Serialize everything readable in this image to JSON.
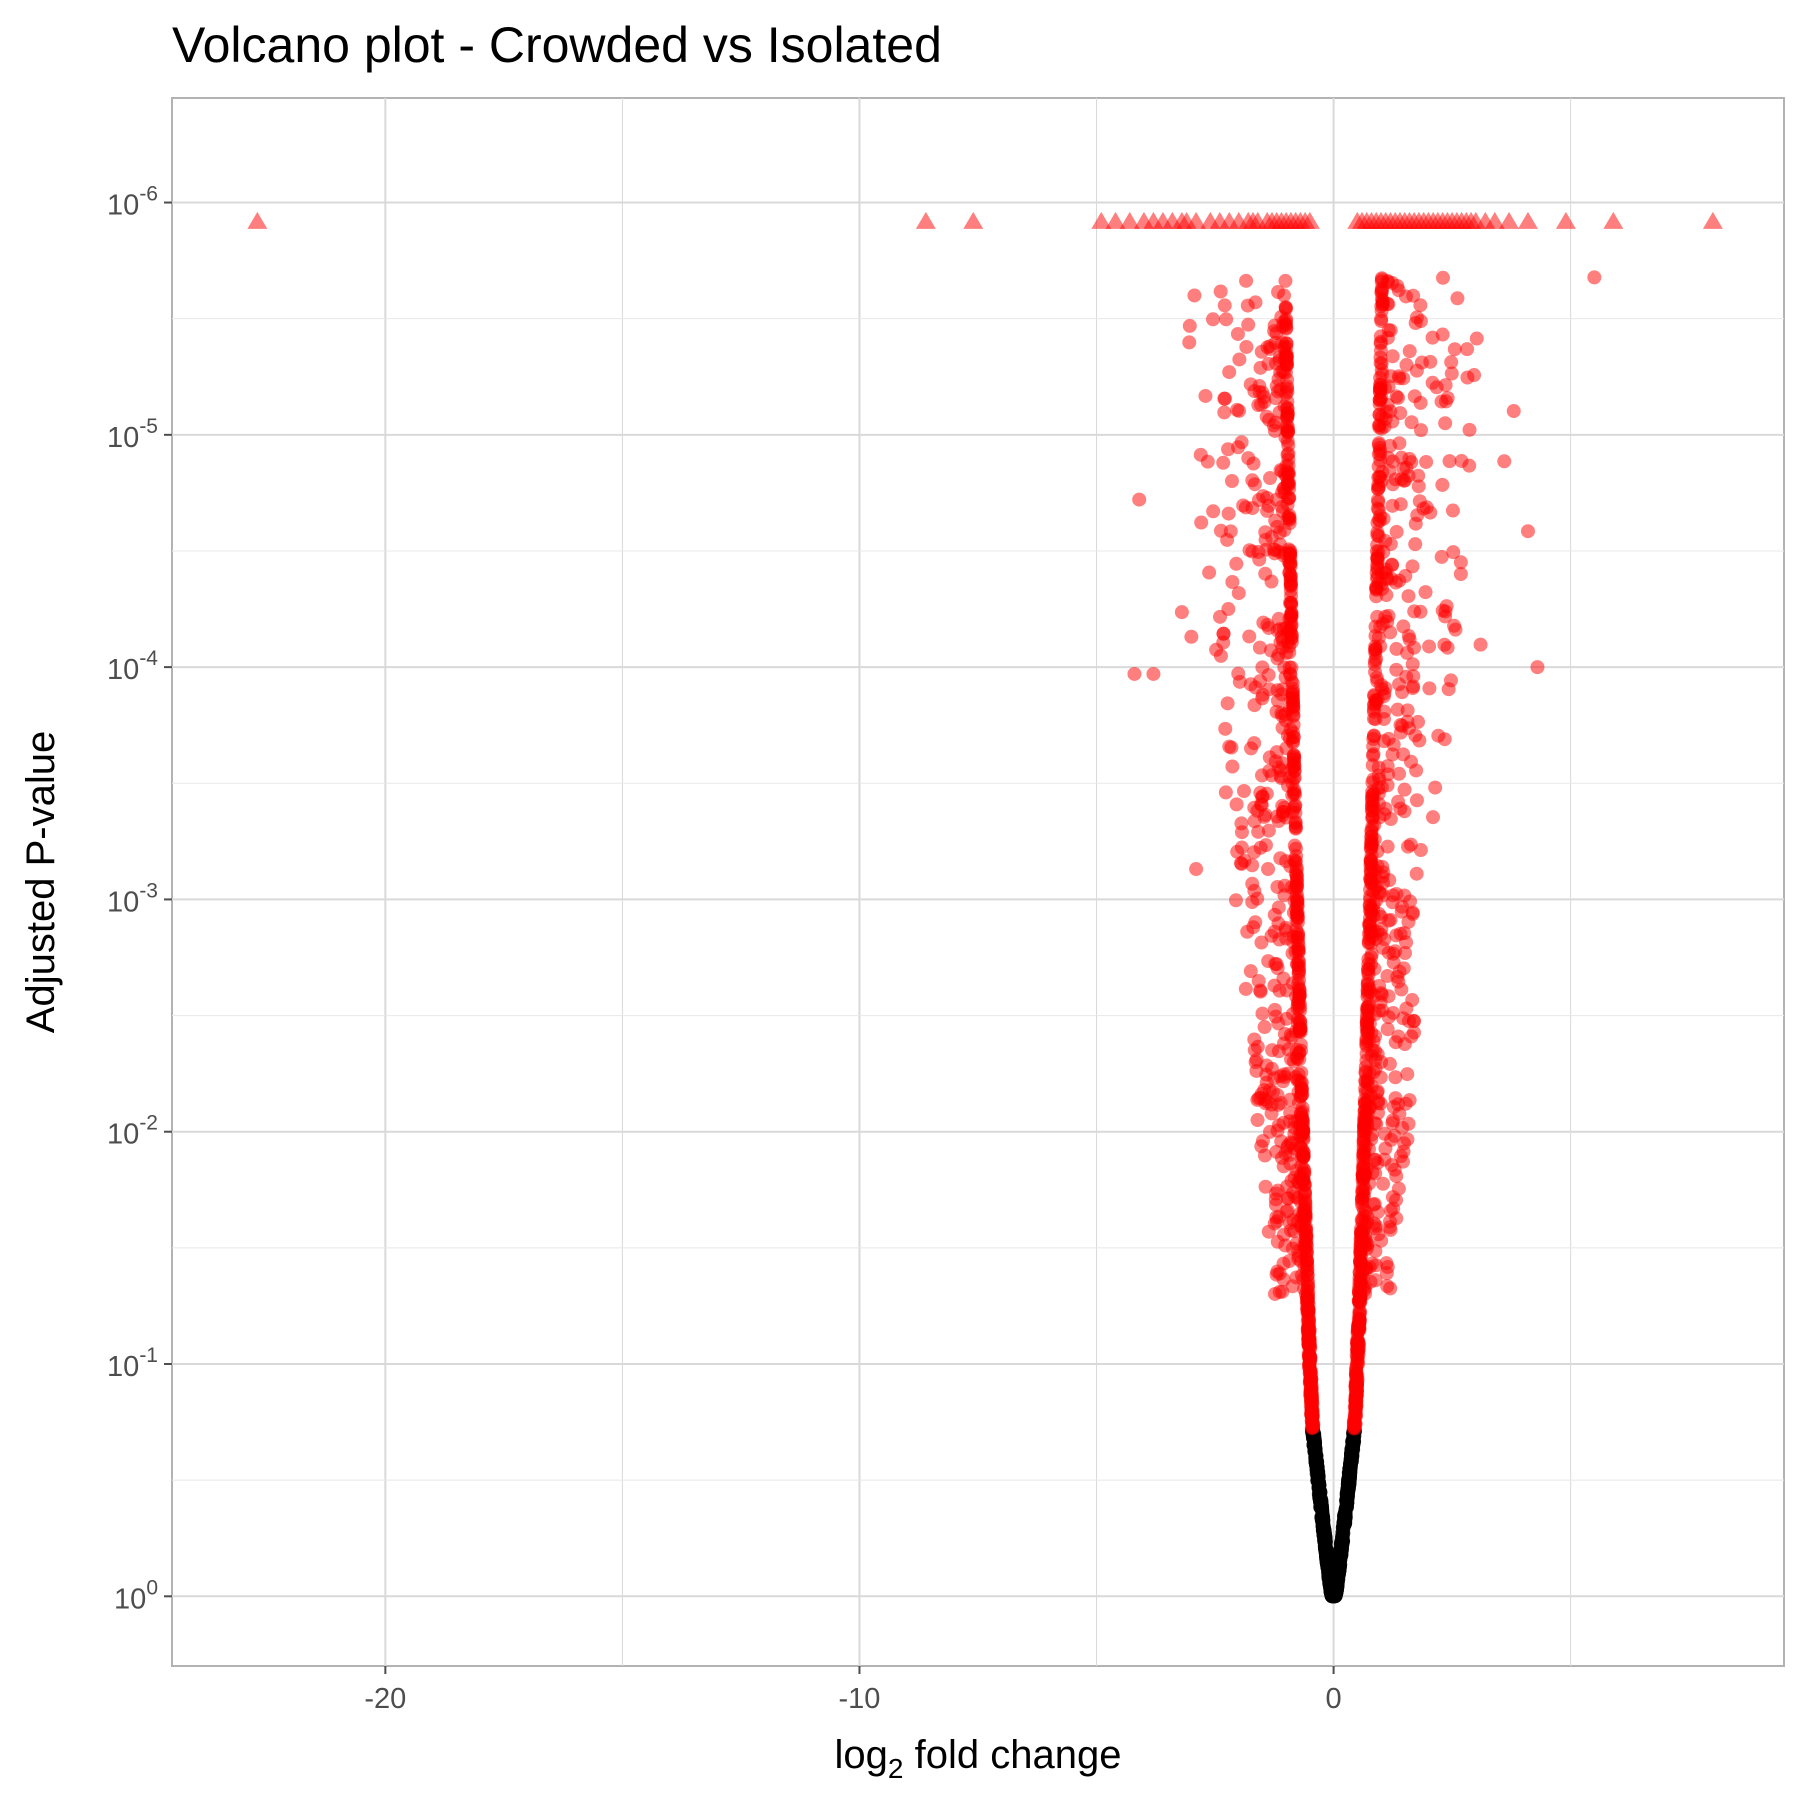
{
  "chart_data": {
    "type": "scatter",
    "title": "Volcano plot - Crowded vs Isolated",
    "xlabel": {
      "prefix": "log",
      "subscript": "2",
      "suffix": " fold change"
    },
    "ylabel": "Adjusted P-value",
    "x_scale": "linear",
    "y_scale": "log (reversed)",
    "xlim": [
      -24.5,
      9.5
    ],
    "ylim_exponent": [
      0.3,
      -6.45
    ],
    "x_ticks": [
      {
        "value": -20,
        "label": "-20"
      },
      {
        "value": -10,
        "label": "-10"
      },
      {
        "value": 0,
        "label": "0"
      }
    ],
    "y_ticks": [
      {
        "value": 1,
        "base": "10",
        "exponent": "0"
      },
      {
        "value": 0.1,
        "base": "10",
        "exponent": "-1"
      },
      {
        "value": 0.01,
        "base": "10",
        "exponent": "-2"
      },
      {
        "value": 0.001,
        "base": "10",
        "exponent": "-3"
      },
      {
        "value": 0.0001,
        "base": "10",
        "exponent": "-4"
      },
      {
        "value": 1e-05,
        "base": "10",
        "exponent": "-5"
      },
      {
        "value": 1e-06,
        "base": "10",
        "exponent": "-6"
      }
    ],
    "grid": true,
    "legend": "none",
    "colors": {
      "significant": "#ff0000",
      "not_significant": "#000000",
      "capped": "#ff0000"
    },
    "significance_threshold_padj": 0.05,
    "capped_marker": "triangle",
    "capped_padj": 1.2e-06,
    "capped_points_x": [
      -22.7,
      -8.6,
      -7.6,
      -4.9,
      -4.6,
      -4.3,
      -4.0,
      -3.8,
      -3.6,
      -3.4,
      -3.2,
      -3.1,
      -2.9,
      -2.6,
      -2.4,
      -2.2,
      -2.0,
      -1.8,
      -1.7,
      -1.6,
      -1.4,
      -1.3,
      -1.2,
      -1.1,
      -1.0,
      -0.9,
      -0.8,
      -0.7,
      -0.6,
      -0.5,
      0.5,
      0.6,
      0.7,
      0.8,
      0.9,
      1.0,
      1.1,
      1.2,
      1.3,
      1.4,
      1.5,
      1.6,
      1.7,
      1.8,
      1.9,
      2.0,
      2.1,
      2.2,
      2.3,
      2.4,
      2.5,
      2.6,
      2.7,
      2.8,
      2.9,
      3.0,
      3.2,
      3.4,
      3.7,
      4.1,
      4.9,
      5.9,
      8.0
    ],
    "notable_points": [
      {
        "x": -4.1,
        "padj": 1.9e-05
      },
      {
        "x": -4.2,
        "padj": 0.000107
      },
      {
        "x": -3.8,
        "padj": 0.000107
      },
      {
        "x": -3.2,
        "padj": 5.8e-05
      },
      {
        "x": -3.0,
        "padj": 7.4e-05
      },
      {
        "x": -2.9,
        "padj": 0.00074
      },
      {
        "x": -2.2,
        "padj": 0.00022
      },
      {
        "x": -2.0,
        "padj": 4.8e-05
      },
      {
        "x": -1.5,
        "padj": 0.0031
      },
      {
        "x": 3.8,
        "padj": 7.9e-06
      },
      {
        "x": 4.1,
        "padj": 2.6e-05
      },
      {
        "x": 4.3,
        "padj": 0.0001
      },
      {
        "x": 3.6,
        "padj": 1.3e-05
      },
      {
        "x": 5.5,
        "padj": 2.1e-06
      },
      {
        "x": 3.1,
        "padj": 8e-05
      },
      {
        "x": 2.3,
        "padj": 3.7e-06
      }
    ]
  }
}
